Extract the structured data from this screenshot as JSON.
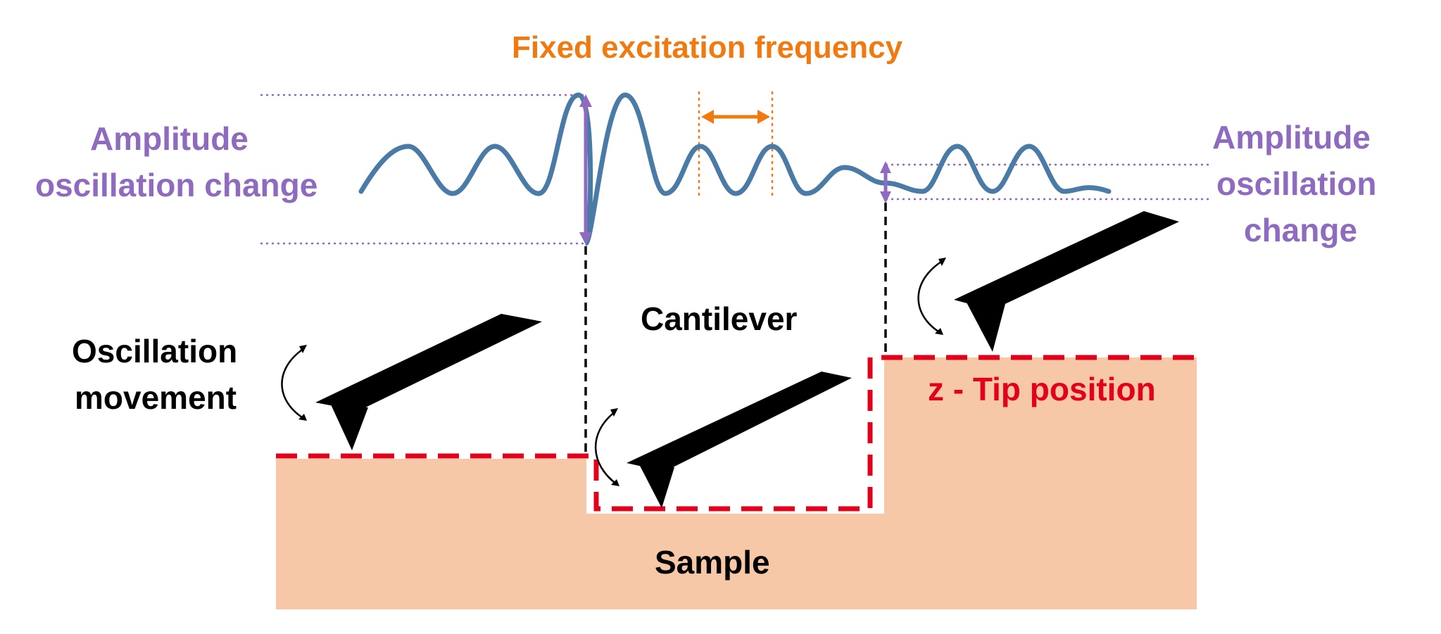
{
  "labels": {
    "fixed_frequency": "Fixed excitation frequency",
    "amp_left_line1": "Amplitude",
    "amp_left_line2": "oscillation change",
    "amp_right_line1": "Amplitude",
    "amp_right_line2": "oscillation",
    "amp_right_line3": "change",
    "cantilever": "Cantilever",
    "oscillation_line1": "Oscillation",
    "oscillation_line2": "movement",
    "z_tip": "z - Tip position",
    "sample": "Sample"
  },
  "colors": {
    "wave": "#4a7aa6",
    "purple": "#8e6bbf",
    "orange": "#f07a10",
    "red": "#e3001b",
    "sample": "#f7c8a8",
    "black": "#000000"
  }
}
